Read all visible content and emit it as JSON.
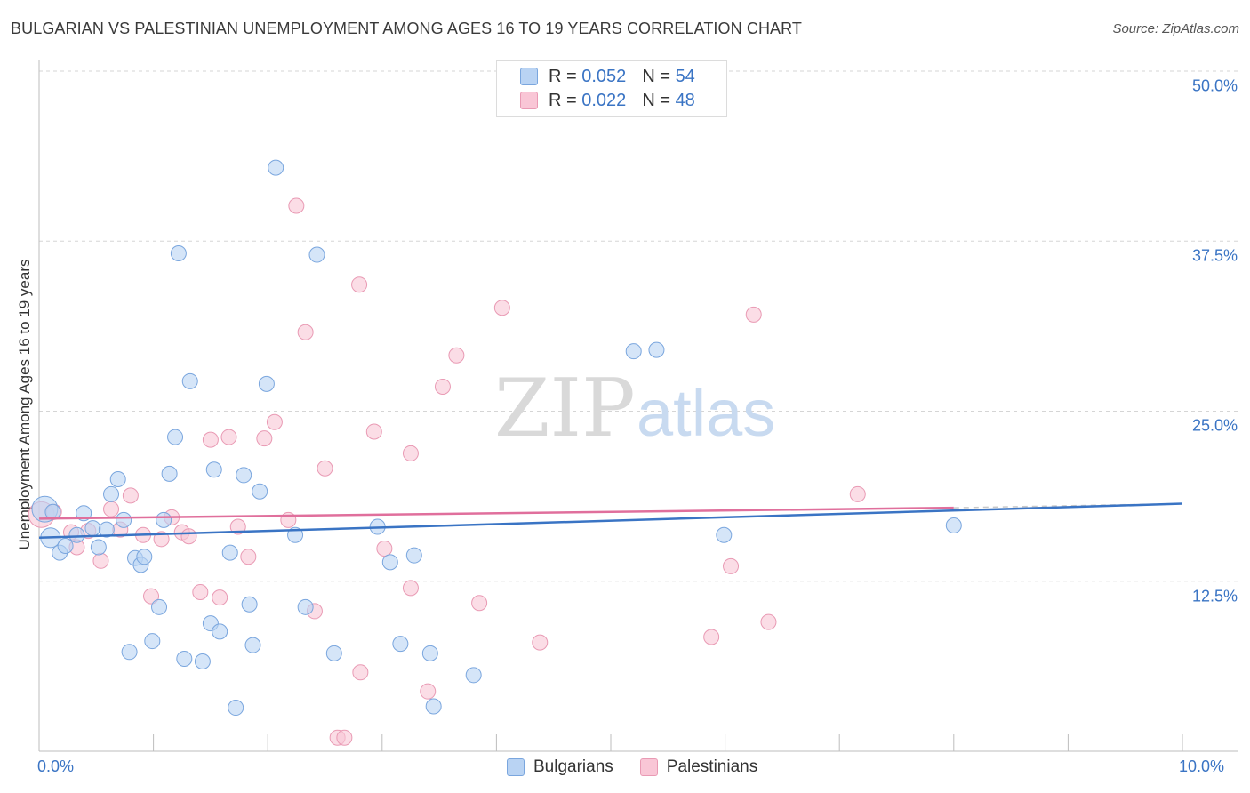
{
  "title": "BULGARIAN VS PALESTINIAN UNEMPLOYMENT AMONG AGES 16 TO 19 YEARS CORRELATION CHART",
  "source": "Source: ZipAtlas.com",
  "watermark": {
    "zip": "ZIP",
    "atlas": "atlas"
  },
  "legend_top": {
    "r_label": "R =",
    "n_label": "N =",
    "bulgarians": {
      "r": "0.052",
      "n": "54"
    },
    "palestinians": {
      "r": "0.022",
      "n": "48"
    }
  },
  "legend_bottom": {
    "bulgarians": "Bulgarians",
    "palestinians": "Palestinians"
  },
  "chart_data": {
    "type": "scatter",
    "title": "BULGARIAN VS PALESTINIAN UNEMPLOYMENT AMONG AGES 16 TO 19 YEARS CORRELATION CHART",
    "xlabel": "",
    "ylabel": "Unemployment Among Ages 16 to 19 years",
    "xlim": [
      0,
      10
    ],
    "ylim": [
      0,
      50
    ],
    "x_tick_labels": [
      "0.0%",
      "10.0%"
    ],
    "y_ticks": [
      12.5,
      25.0,
      37.5,
      50.0
    ],
    "y_tick_labels": [
      "12.5%",
      "25.0%",
      "37.5%",
      "50.0%"
    ],
    "colors": {
      "bulgarians": "#3a74c4",
      "palestinians": "#e06f9c",
      "bulg_fill": "#b9d3f3",
      "pal_fill": "#f9c6d6"
    },
    "series": [
      {
        "name": "Bulgarians",
        "trend": {
          "x0": 0.0,
          "y0": 15.7,
          "x1": 10.0,
          "y1": 18.2
        },
        "points": [
          [
            0.05,
            17.8,
            1.7
          ],
          [
            0.1,
            15.7,
            1.3
          ],
          [
            0.12,
            17.6,
            1
          ],
          [
            0.18,
            14.6,
            1
          ],
          [
            0.23,
            15.1,
            1
          ],
          [
            0.33,
            15.9,
            1
          ],
          [
            0.39,
            17.5,
            1
          ],
          [
            0.47,
            16.4,
            1
          ],
          [
            0.52,
            15.0,
            1
          ],
          [
            0.59,
            16.3,
            1
          ],
          [
            0.63,
            18.9,
            1
          ],
          [
            0.69,
            20.0,
            1
          ],
          [
            0.74,
            17.0,
            1
          ],
          [
            0.79,
            7.3,
            1
          ],
          [
            0.84,
            14.2,
            1
          ],
          [
            0.89,
            13.7,
            1
          ],
          [
            0.92,
            14.3,
            1
          ],
          [
            0.99,
            8.1,
            1
          ],
          [
            1.05,
            10.6,
            1
          ],
          [
            1.09,
            17.0,
            1
          ],
          [
            1.14,
            20.4,
            1
          ],
          [
            1.19,
            23.1,
            1
          ],
          [
            1.22,
            36.6,
            1
          ],
          [
            1.27,
            6.8,
            1
          ],
          [
            1.32,
            27.2,
            1
          ],
          [
            1.43,
            6.6,
            1
          ],
          [
            1.5,
            9.4,
            1
          ],
          [
            1.53,
            20.7,
            1
          ],
          [
            1.58,
            8.8,
            1
          ],
          [
            1.67,
            14.6,
            1
          ],
          [
            1.72,
            3.2,
            1
          ],
          [
            1.79,
            20.3,
            1
          ],
          [
            1.84,
            10.8,
            1
          ],
          [
            1.87,
            7.8,
            1
          ],
          [
            1.93,
            19.1,
            1
          ],
          [
            1.99,
            27.0,
            1
          ],
          [
            2.07,
            42.9,
            1
          ],
          [
            2.24,
            15.9,
            1
          ],
          [
            2.33,
            10.6,
            1
          ],
          [
            2.43,
            36.5,
            1
          ],
          [
            2.58,
            7.2,
            1
          ],
          [
            2.96,
            16.5,
            1
          ],
          [
            3.07,
            13.9,
            1
          ],
          [
            3.16,
            7.9,
            1
          ],
          [
            3.28,
            14.4,
            1
          ],
          [
            3.42,
            7.2,
            1
          ],
          [
            3.45,
            3.3,
            1
          ],
          [
            3.8,
            5.6,
            1
          ],
          [
            5.2,
            29.4,
            1
          ],
          [
            5.4,
            29.5,
            1
          ],
          [
            5.99,
            15.9,
            1
          ],
          [
            8.0,
            16.6,
            1
          ]
        ]
      },
      {
        "name": "Palestinians",
        "trend": {
          "x0": 0.0,
          "y0": 17.1,
          "x1": 8.0,
          "y1": 17.9
        },
        "points": [
          [
            0.02,
            17.4,
            1.7
          ],
          [
            0.13,
            17.6,
            1
          ],
          [
            0.28,
            16.1,
            1
          ],
          [
            0.33,
            15.0,
            1
          ],
          [
            0.43,
            16.2,
            1
          ],
          [
            0.54,
            14.0,
            1
          ],
          [
            0.63,
            17.8,
            1
          ],
          [
            0.71,
            16.3,
            1
          ],
          [
            0.8,
            18.8,
            1
          ],
          [
            0.91,
            15.9,
            1
          ],
          [
            0.98,
            11.4,
            1
          ],
          [
            1.07,
            15.6,
            1
          ],
          [
            1.16,
            17.2,
            1
          ],
          [
            1.25,
            16.1,
            1
          ],
          [
            1.31,
            15.8,
            1
          ],
          [
            1.41,
            11.7,
            1
          ],
          [
            1.5,
            22.9,
            1
          ],
          [
            1.58,
            11.3,
            1
          ],
          [
            1.66,
            23.1,
            1
          ],
          [
            1.74,
            16.5,
            1
          ],
          [
            1.83,
            14.3,
            1
          ],
          [
            1.97,
            23.0,
            1
          ],
          [
            2.06,
            24.2,
            1
          ],
          [
            2.18,
            17.0,
            1
          ],
          [
            2.25,
            40.1,
            1
          ],
          [
            2.33,
            30.8,
            1
          ],
          [
            2.41,
            10.3,
            1
          ],
          [
            2.5,
            20.8,
            1
          ],
          [
            2.61,
            1.0,
            1
          ],
          [
            2.67,
            1.0,
            1
          ],
          [
            2.8,
            34.3,
            1
          ],
          [
            2.81,
            5.8,
            1
          ],
          [
            2.93,
            23.5,
            1
          ],
          [
            3.02,
            14.9,
            1
          ],
          [
            3.25,
            21.9,
            1
          ],
          [
            3.25,
            12.0,
            1
          ],
          [
            3.4,
            4.4,
            1
          ],
          [
            3.53,
            26.8,
            1
          ],
          [
            3.65,
            29.1,
            1
          ],
          [
            3.85,
            10.9,
            1
          ],
          [
            4.05,
            32.6,
            1
          ],
          [
            4.38,
            8.0,
            1
          ],
          [
            5.88,
            8.4,
            1
          ],
          [
            6.05,
            13.6,
            1
          ],
          [
            6.25,
            32.1,
            1
          ],
          [
            6.38,
            9.5,
            1
          ],
          [
            7.16,
            18.9,
            1
          ]
        ]
      }
    ]
  }
}
